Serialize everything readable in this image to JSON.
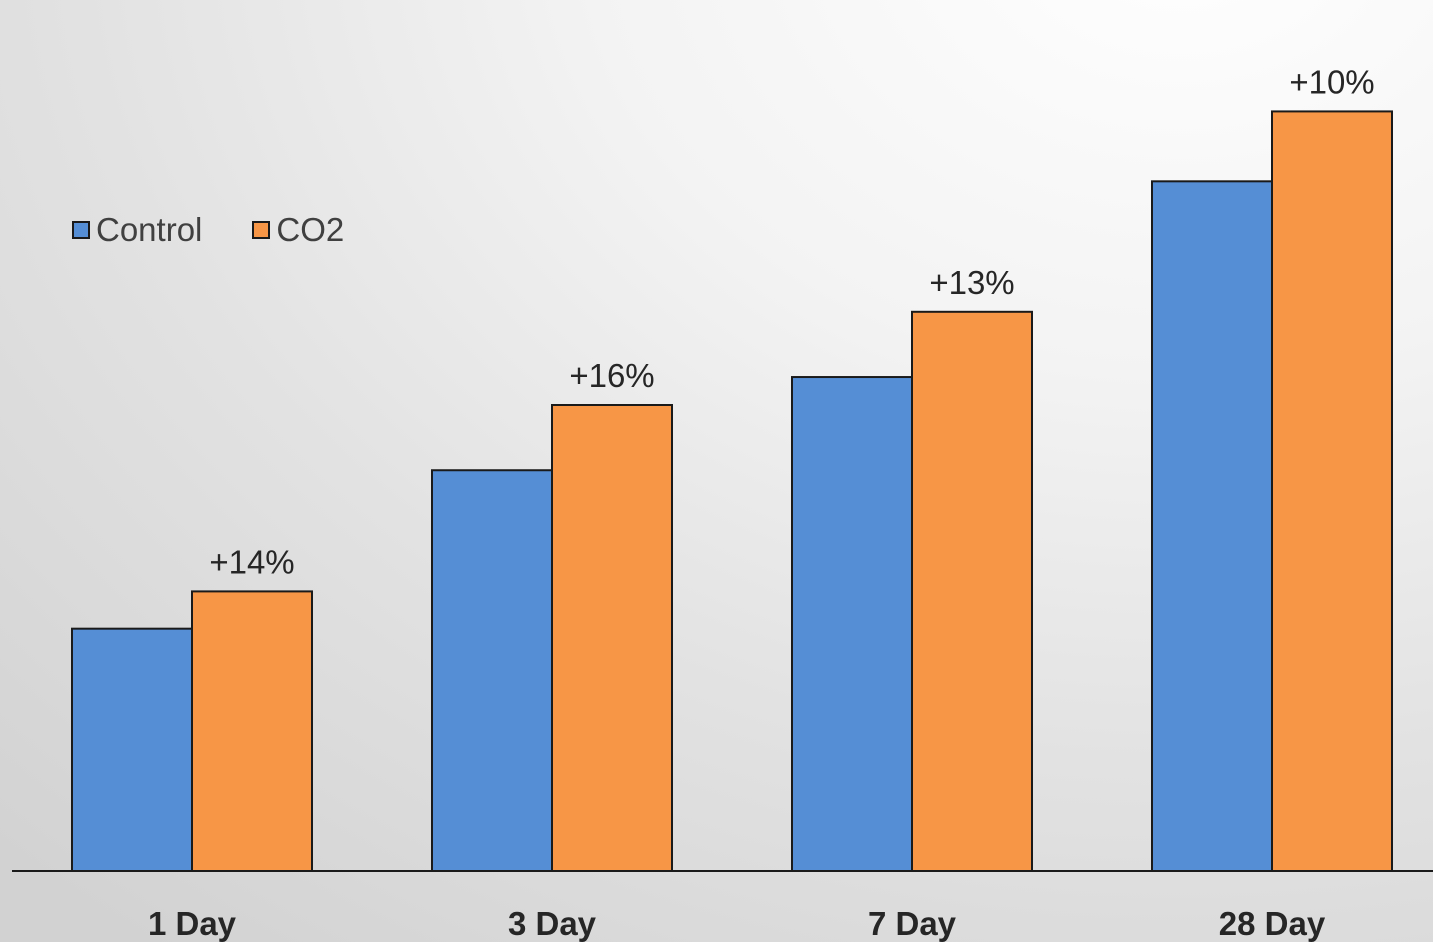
{
  "chart_data": {
    "type": "bar",
    "title": "",
    "xlabel": "",
    "ylabel": "",
    "categories": [
      "1 Day",
      "3 Day",
      "7 Day",
      "28 Day"
    ],
    "series": [
      {
        "name": "Control",
        "color": "#558ed5",
        "values": [
          26,
          43,
          53,
          74
        ]
      },
      {
        "name": "CO2",
        "color": "#f79646",
        "values": [
          30,
          50,
          60,
          81.5
        ]
      }
    ],
    "data_labels": [
      "+14%",
      "+16%",
      "+13%",
      "+10%"
    ],
    "ylim": [
      0,
      85
    ],
    "y_axis_visible": false,
    "grid": false,
    "legend_position": "top-left",
    "bar_outline_color": "#1a1a1a"
  }
}
